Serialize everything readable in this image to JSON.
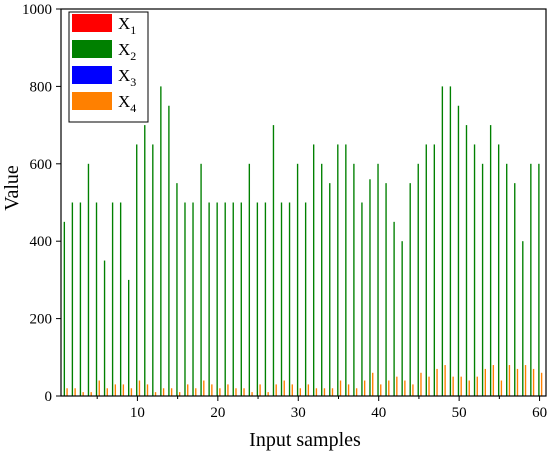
{
  "chart_data": {
    "type": "bar",
    "xlabel": "Input samples",
    "ylabel": "Value",
    "ylim": [
      0,
      1000
    ],
    "xlim": [
      0.5,
      60.8
    ],
    "yticks": [
      0,
      200,
      400,
      600,
      800,
      1000
    ],
    "xticks": [
      10,
      20,
      30,
      40,
      50,
      60
    ],
    "legend_position": "top-left",
    "x": [
      1,
      2,
      3,
      4,
      5,
      6,
      7,
      8,
      9,
      10,
      11,
      12,
      13,
      14,
      15,
      16,
      17,
      18,
      19,
      20,
      21,
      22,
      23,
      24,
      25,
      26,
      27,
      28,
      29,
      30,
      31,
      32,
      33,
      34,
      35,
      36,
      37,
      38,
      39,
      40,
      41,
      42,
      43,
      44,
      45,
      46,
      47,
      48,
      49,
      50,
      51,
      52,
      53,
      54,
      55,
      56,
      57,
      58,
      59,
      60
    ],
    "series": [
      {
        "name": "X1",
        "label_base": "X",
        "label_sub": "1",
        "color": "#ff0000",
        "values": [
          1,
          1,
          1,
          1,
          1,
          1,
          1,
          1,
          1,
          1,
          1,
          1,
          1,
          1,
          1,
          1,
          1,
          1,
          1,
          1,
          1,
          1,
          1,
          1,
          1,
          1,
          1,
          1,
          1,
          1,
          1,
          1,
          1,
          1,
          1,
          1,
          1,
          1,
          1,
          1,
          1,
          1,
          1,
          1,
          1,
          1,
          1,
          1,
          1,
          1,
          1,
          1,
          1,
          1,
          1,
          1,
          1,
          1,
          1,
          1
        ]
      },
      {
        "name": "X2",
        "label_base": "X",
        "label_sub": "2",
        "color": "#008000",
        "values": [
          450,
          500,
          500,
          600,
          500,
          350,
          500,
          500,
          300,
          650,
          700,
          650,
          800,
          750,
          550,
          500,
          500,
          600,
          500,
          500,
          500,
          500,
          500,
          600,
          500,
          500,
          700,
          500,
          500,
          600,
          500,
          650,
          600,
          550,
          650,
          650,
          600,
          500,
          560,
          600,
          550,
          450,
          400,
          550,
          600,
          650,
          650,
          800,
          800,
          750,
          700,
          650,
          600,
          700,
          650,
          600,
          550,
          400,
          600,
          600
        ]
      },
      {
        "name": "X3",
        "label_base": "X",
        "label_sub": "3",
        "color": "#0000ff",
        "values": [
          1,
          1,
          1,
          1,
          1,
          1,
          1,
          1,
          1,
          1,
          1,
          1,
          1,
          1,
          1,
          1,
          1,
          1,
          1,
          1,
          1,
          1,
          1,
          1,
          1,
          1,
          1,
          1,
          1,
          1,
          1,
          1,
          1,
          1,
          1,
          1,
          1,
          1,
          1,
          1,
          1,
          1,
          1,
          1,
          1,
          1,
          1,
          1,
          1,
          1,
          1,
          1,
          1,
          1,
          1,
          1,
          1,
          1,
          1,
          1
        ]
      },
      {
        "name": "X4",
        "label_base": "X",
        "label_sub": "4",
        "color": "#ff8000",
        "values": [
          20,
          20,
          10,
          10,
          40,
          20,
          30,
          30,
          20,
          40,
          30,
          10,
          20,
          20,
          10,
          30,
          20,
          40,
          30,
          20,
          30,
          20,
          20,
          10,
          30,
          10,
          30,
          40,
          30,
          20,
          30,
          20,
          20,
          20,
          40,
          30,
          20,
          40,
          60,
          30,
          40,
          50,
          40,
          30,
          60,
          50,
          70,
          80,
          50,
          50,
          40,
          50,
          70,
          80,
          40,
          80,
          70,
          80,
          70,
          60
        ]
      }
    ]
  }
}
